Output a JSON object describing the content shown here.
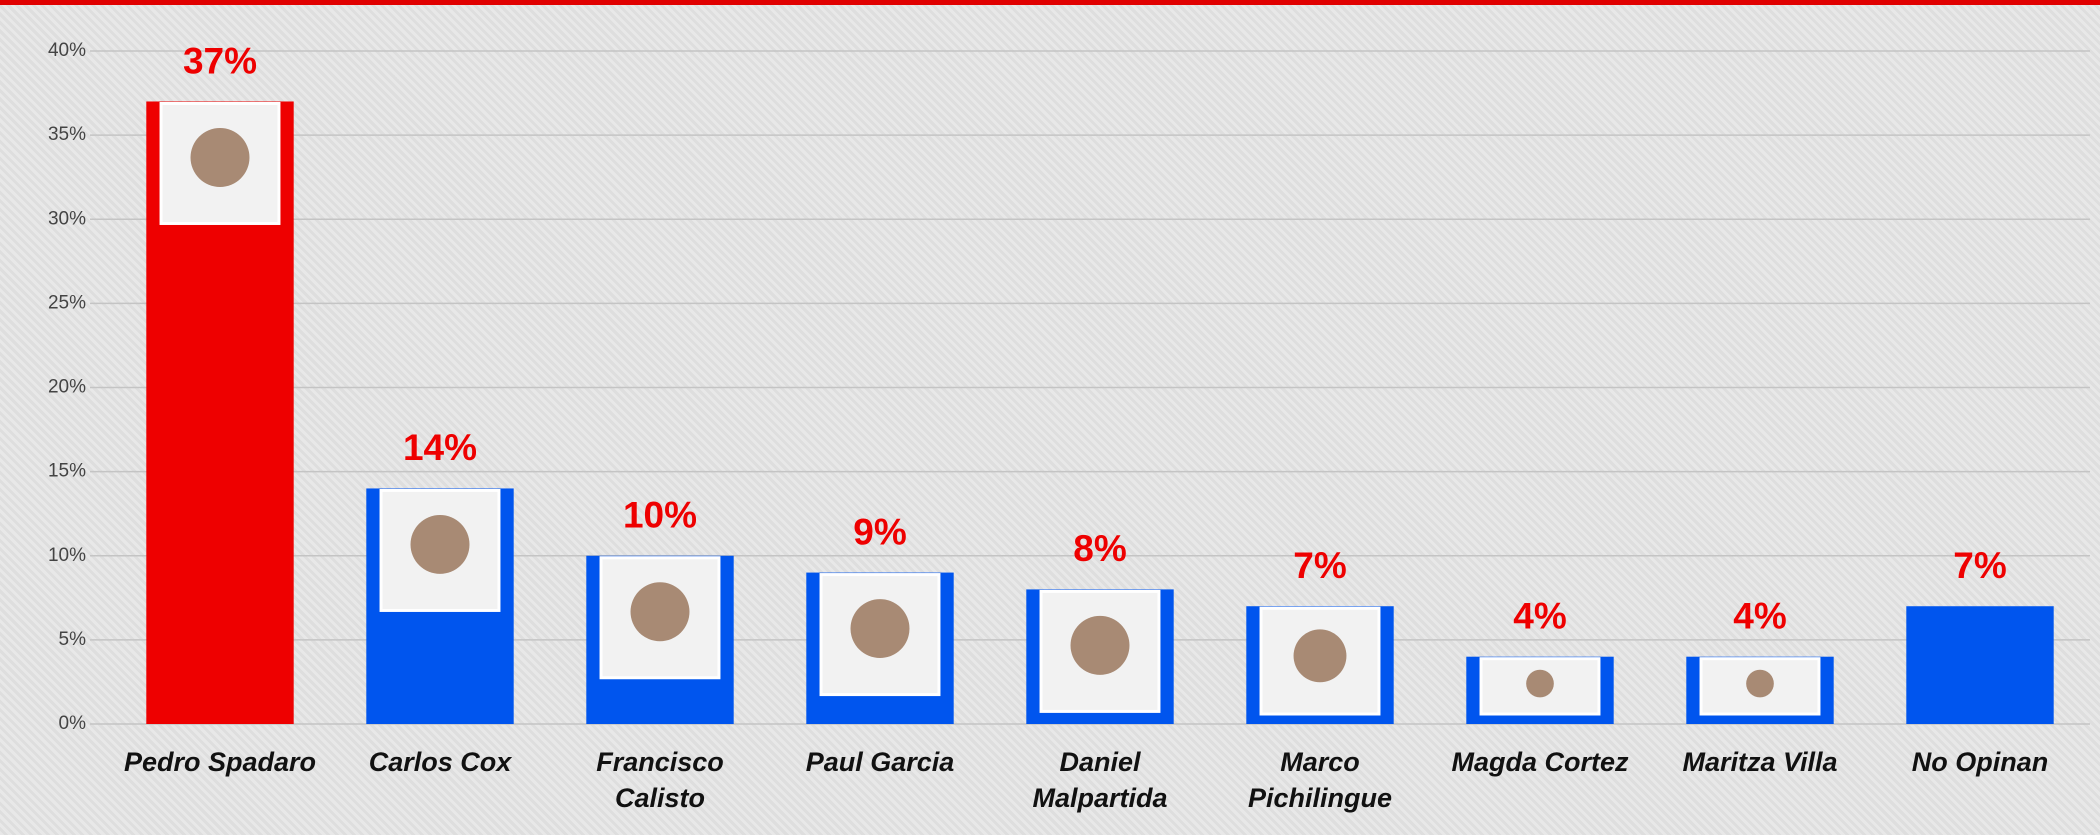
{
  "chart_data": {
    "type": "bar",
    "categories": [
      "Pedro Spadaro",
      "Carlos Cox",
      "Francisco Calisto",
      "Paul Garcia",
      "Daniel Malpartida",
      "Marco Pichilingue",
      "Magda Cortez",
      "Maritza Villa",
      "No Opinan"
    ],
    "values": [
      37,
      14,
      10,
      9,
      8,
      7,
      4,
      4,
      7
    ],
    "value_labels": [
      "37%",
      "14%",
      "10%",
      "9%",
      "8%",
      "7%",
      "4%",
      "4%",
      "7%"
    ],
    "colors": [
      "#ee0000",
      "#0055ee",
      "#0055ee",
      "#0055ee",
      "#0055ee",
      "#0055ee",
      "#0055ee",
      "#0055ee",
      "#0055ee"
    ],
    "ylim": [
      0,
      40
    ],
    "yticks": [
      {
        "value": 0,
        "label": "0%"
      },
      {
        "value": 5,
        "label": "5%"
      },
      {
        "value": 10,
        "label": "10%"
      },
      {
        "value": 15,
        "label": "15%"
      },
      {
        "value": 20,
        "label": "20%"
      },
      {
        "value": 25,
        "label": "25%"
      },
      {
        "value": 30,
        "label": "30%"
      },
      {
        "value": 35,
        "label": "35%"
      },
      {
        "value": 40,
        "label": "40%"
      }
    ],
    "grid": true
  }
}
